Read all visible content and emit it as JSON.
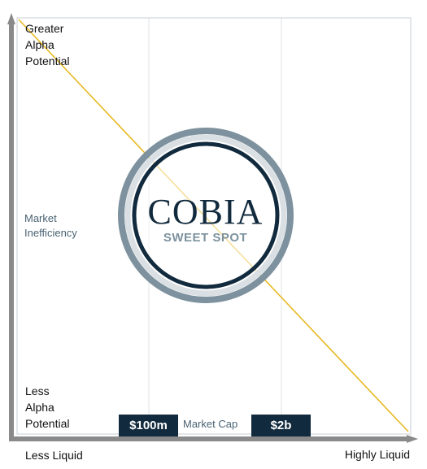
{
  "labels": {
    "top_left": "Greater\nAlpha\nPotential",
    "bottom_left": "Less\nAlpha\nPotential",
    "side": "Market\nInefficiency",
    "x_left": "Less Liquid",
    "x_right": "Highly Liquid"
  },
  "market_cap": {
    "low": "$100m",
    "label": "Market Cap",
    "high": "$2b"
  },
  "logo": {
    "name": "COBIA",
    "tagline": "SWEET SPOT"
  },
  "colors": {
    "navy": "#112a3d",
    "steel": "#7d929e",
    "ring_light": "#d9dfe3",
    "diagonal": "#e8b923",
    "axis": "#8a8a8a",
    "label_blue": "#4a6373"
  }
}
